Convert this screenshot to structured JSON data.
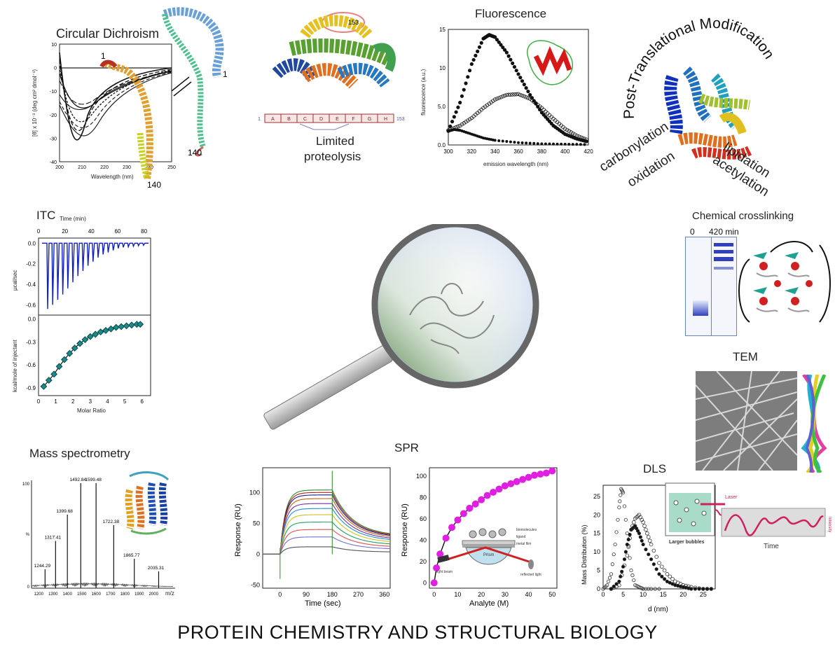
{
  "footer_title": "PROTEIN CHEMISTRY AND STRUCTURAL BIOLOGY",
  "panels": {
    "cd": {
      "title": "Circular Dichroism",
      "xlabel": "Wavelength (nm)",
      "ylabel": "[θ] x 10⁻³ (deg cm² dmol⁻¹)",
      "helix_start": "1",
      "helix_end": "140",
      "helix2_start": "1",
      "helix2_end": "140"
    },
    "lp": {
      "title_line1": "Limited",
      "title_line2": "proteolysis",
      "num_top": "153",
      "num_start": "1",
      "num_end": "153",
      "segments": [
        "A",
        "B",
        "C",
        "D",
        "E",
        "F",
        "G",
        "H"
      ]
    },
    "fl": {
      "title": "Fluorescence",
      "xlabel": "emission wavelength (nm)",
      "ylabel": "fluorescence (a.u.)"
    },
    "ptm": {
      "title": "Post-Translational Modification",
      "mods": [
        "carbonylation",
        "oxidation",
        "lipidation",
        "acetylation"
      ]
    },
    "itc": {
      "title": "ITC",
      "top_xlabel": "Time (min)",
      "ylabel_top": "µcal/sec",
      "ylabel_bottom": "kcal/mole of injectant",
      "xlabel": "Molar Ratio"
    },
    "xl": {
      "title": "Chemical crosslinking",
      "lane0": "0",
      "lane1": "420 min"
    },
    "tem": {
      "title": "TEM"
    },
    "ms": {
      "title": "Mass spectrometry",
      "peaks": [
        "1492.84",
        "1599.48",
        "1399.68",
        "1722.38",
        "1317.41",
        "1865.77",
        "1244.29",
        "2035.31"
      ],
      "xlabel": "m/z"
    },
    "spr": {
      "title": "SPR",
      "ylabel1": "Response (RU)",
      "xlabel1": "Time (sec)",
      "ylabel2": "Response (RU)",
      "xlabel2": "Analyte (M)",
      "inset_labels": [
        "biomolecules",
        "ligand",
        "metal film",
        "Prism",
        "light beam",
        "reflected light"
      ]
    },
    "dls": {
      "title": "DLS",
      "ylabel": "Mass Distribution (%)",
      "xlabel": "d (nm)",
      "inset_caption": "Larger bubbles",
      "inset_laser": "Laser",
      "inset_time": "Time",
      "inset_intensity": "Intensity"
    }
  },
  "chart_data": [
    {
      "type": "line",
      "title": "Circular Dichroism",
      "xlabel": "Wavelength (nm)",
      "xlim": [
        195,
        250
      ],
      "ylim": [
        -40,
        10
      ],
      "x_ticks": [
        "200",
        "210",
        "220",
        "230",
        "240",
        "250"
      ],
      "y_ticks": [
        "10",
        "0",
        "-10",
        "-20",
        "-30",
        "-40"
      ]
    },
    {
      "type": "scatter",
      "title": "Fluorescence",
      "xlabel": "emission wavelength (nm)",
      "ylabel": "fluorescence (a.u.)",
      "xlim": [
        300,
        420
      ],
      "ylim": [
        0,
        15
      ],
      "x_ticks": [
        "300",
        "320",
        "340",
        "360",
        "380",
        "400",
        "420"
      ],
      "y_ticks": [
        "15",
        "10",
        "5.0",
        "0.0"
      ],
      "series": [
        {
          "x": [
            300,
            310,
            320,
            330,
            335,
            340,
            350,
            360,
            370,
            380,
            390,
            400,
            410,
            420
          ],
          "values": [
            1.8,
            5.5,
            10.5,
            13.8,
            14.3,
            14.0,
            12.0,
            9.2,
            6.5,
            4.2,
            2.5,
            1.4,
            0.8,
            0.4
          ]
        },
        {
          "x": [
            300,
            310,
            320,
            330,
            340,
            350,
            360,
            370,
            380,
            390,
            400,
            410,
            420
          ],
          "values": [
            1.9,
            2.5,
            3.5,
            4.8,
            5.9,
            6.5,
            6.6,
            6.0,
            4.8,
            3.4,
            2.1,
            1.2,
            0.6
          ]
        },
        {
          "x": [
            300,
            305,
            310,
            320,
            330,
            340,
            360,
            380,
            400,
            420
          ],
          "values": [
            1.8,
            2.0,
            1.9,
            1.4,
            0.9,
            0.6,
            0.3,
            0.15,
            0.1,
            0.05
          ]
        }
      ]
    },
    {
      "type": "line",
      "title": "ITC",
      "xlabel": "Time (min)",
      "ylabel": "µcal/sec",
      "xlim": [
        0,
        85
      ],
      "ylim": [
        -0.7,
        0.05
      ],
      "x_ticks": [
        "0",
        "20",
        "40",
        "60",
        "80"
      ],
      "y_ticks": [
        "0.0",
        "-0.2",
        "-0.4",
        "-0.6"
      ],
      "peaks": [
        -0.64,
        -0.6,
        -0.55,
        -0.5,
        -0.44,
        -0.38,
        -0.32,
        -0.27,
        -0.22,
        -0.18,
        -0.14,
        -0.11,
        -0.09,
        -0.07,
        -0.05,
        -0.04,
        -0.035,
        -0.03,
        -0.025,
        -0.02
      ]
    },
    {
      "type": "scatter",
      "xlabel": "Molar Ratio",
      "ylabel": "kcal/mole of injectant",
      "xlim": [
        0,
        6.5
      ],
      "ylim": [
        -1.0,
        0.05
      ],
      "x_ticks": [
        "0",
        "1",
        "2",
        "3",
        "4",
        "5",
        "6"
      ],
      "y_ticks": [
        "0.0",
        "-0.3",
        "-0.6",
        "-0.9"
      ],
      "x": [
        0.3,
        0.6,
        0.9,
        1.2,
        1.5,
        1.8,
        2.1,
        2.4,
        2.7,
        3.0,
        3.3,
        3.6,
        3.9,
        4.2,
        4.5,
        4.8,
        5.1,
        5.4,
        5.7,
        5.9
      ],
      "values": [
        -0.88,
        -0.8,
        -0.72,
        -0.62,
        -0.53,
        -0.45,
        -0.38,
        -0.32,
        -0.27,
        -0.23,
        -0.2,
        -0.17,
        -0.15,
        -0.13,
        -0.11,
        -0.1,
        -0.09,
        -0.08,
        -0.07,
        -0.07
      ]
    },
    {
      "type": "bar",
      "title": "Mass spectrometry",
      "xlabel": "m/z",
      "xlim": [
        1150,
        2150
      ],
      "ylim": [
        0,
        100
      ],
      "x_ticks": [
        "1200",
        "1300",
        "1400",
        "1500",
        "1600",
        "1700",
        "1800",
        "1900",
        "2000"
      ],
      "y_ticks": [
        "100",
        "%",
        "0"
      ],
      "x": [
        1244.29,
        1317.41,
        1399.68,
        1492.84,
        1599.48,
        1722.38,
        1865.77,
        2035.31
      ],
      "values": [
        18,
        45,
        70,
        100,
        100,
        60,
        28,
        16
      ]
    },
    {
      "type": "line",
      "title": "SPR",
      "xlabel": "Time (sec)",
      "ylabel": "Response (RU)",
      "xlim": [
        -60,
        380
      ],
      "ylim": [
        -55,
        140
      ],
      "x_ticks": [
        "0",
        "90",
        "180",
        "270",
        "360"
      ],
      "y_ticks": [
        "100",
        "50",
        "0",
        "-50"
      ],
      "series": [
        {
          "name": "",
          "values": [
            104
          ]
        },
        {
          "name": "",
          "values": [
            100
          ]
        },
        {
          "name": "",
          "values": [
            96
          ]
        },
        {
          "name": "",
          "values": [
            90
          ]
        },
        {
          "name": "",
          "values": [
            82
          ]
        },
        {
          "name": "",
          "values": [
            74
          ]
        },
        {
          "name": "",
          "values": [
            64
          ]
        },
        {
          "name": "",
          "values": [
            52
          ]
        },
        {
          "name": "",
          "values": [
            40
          ]
        },
        {
          "name": "",
          "values": [
            28
          ]
        },
        {
          "name": "",
          "values": [
            12
          ]
        }
      ]
    },
    {
      "type": "scatter",
      "xlabel": "Analyte (M)",
      "ylabel": "Response (RU)",
      "xlim": [
        -2,
        52
      ],
      "ylim": [
        -5,
        108
      ],
      "x_ticks": [
        "0",
        "10",
        "20",
        "30",
        "40",
        "50"
      ],
      "y_ticks": [
        "100",
        "80",
        "60",
        "40",
        "20",
        "0"
      ],
      "x": [
        0,
        1,
        2.5,
        5,
        7.5,
        10,
        12.5,
        15,
        17.5,
        20,
        22.5,
        25,
        27.5,
        30,
        32.5,
        35,
        37.5,
        40,
        42.5,
        45,
        47.5,
        50
      ],
      "values": [
        0,
        14,
        27,
        42,
        52,
        59,
        65,
        70,
        74,
        78,
        82,
        85,
        88,
        91,
        93,
        95,
        97,
        99,
        101,
        102,
        103,
        105
      ]
    },
    {
      "type": "scatter",
      "title": "DLS",
      "xlabel": "d (nm)",
      "ylabel": "Mass Distribution (%)",
      "xlim": [
        0,
        28
      ],
      "ylim": [
        0,
        28
      ],
      "x_ticks": [
        "0",
        "5",
        "10",
        "15",
        "20",
        "25"
      ],
      "y_ticks": [
        "25",
        "20",
        "15",
        "10",
        "5",
        "0"
      ],
      "series": [
        {
          "x": [
            0,
            1,
            2,
            3,
            4,
            4.5,
            5,
            6,
            7,
            8,
            9,
            10,
            12,
            15
          ],
          "values": [
            0,
            1,
            4,
            12,
            22,
            27,
            26,
            15,
            5,
            1,
            0.5,
            0,
            0,
            0
          ]
        },
        {
          "x": [
            2,
            4,
            6,
            7,
            8,
            9,
            10,
            11,
            12,
            14,
            16,
            18,
            20,
            22,
            25,
            28
          ],
          "values": [
            0,
            1,
            9,
            16,
            19,
            20,
            18,
            15,
            12,
            7,
            4,
            2,
            1,
            0.5,
            0,
            0
          ]
        },
        {
          "x": [
            2,
            4,
            5,
            6,
            7,
            8,
            9,
            10,
            12,
            14,
            16,
            18,
            20,
            22,
            25,
            28
          ],
          "values": [
            0,
            2,
            6,
            12,
            16,
            17,
            15,
            12,
            8,
            4,
            2,
            1,
            0.5,
            0,
            0,
            0
          ]
        }
      ]
    }
  ]
}
